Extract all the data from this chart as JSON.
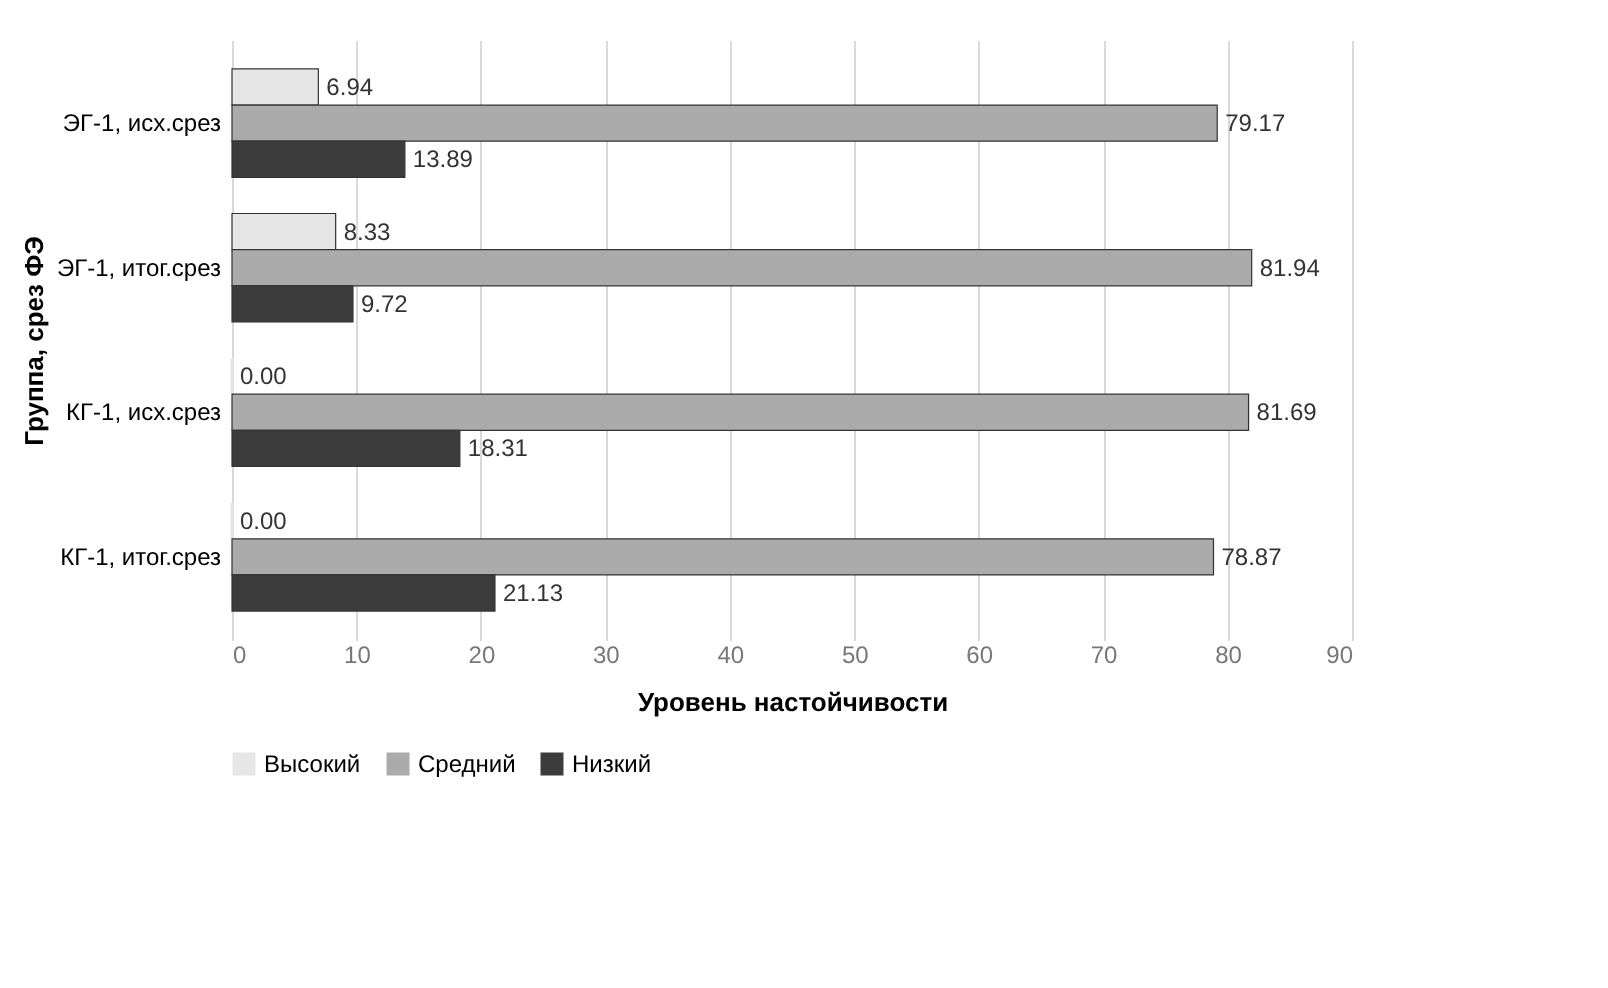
{
  "chart_data": {
    "type": "bar",
    "orientation": "horizontal",
    "xlabel": "Уровень настойчивости",
    "ylabel": "Группа, срез ФЭ",
    "categories": [
      "ЭГ-1, исх.срез",
      "ЭГ-1, итог.срез",
      "КГ-1, исх.срез",
      "КГ-1, итог.срез"
    ],
    "series": [
      {
        "name": "Высокий",
        "color": "#e6e6e6",
        "values": [
          6.94,
          8.33,
          0.0,
          0.0
        ],
        "value_labels": [
          "6.94",
          "8.33",
          "0.00",
          "0.00"
        ]
      },
      {
        "name": "Средний",
        "color": "#ababab",
        "values": [
          79.17,
          81.94,
          81.69,
          78.87
        ],
        "value_labels": [
          "79.17",
          "81.94",
          "81.69",
          "78.87"
        ]
      },
      {
        "name": "Низкий",
        "color": "#3c3c3c",
        "values": [
          13.89,
          9.72,
          18.31,
          21.13
        ],
        "value_labels": [
          "13.89",
          "9.72",
          "18.31",
          "21.13"
        ]
      }
    ],
    "xlim": [
      0,
      90
    ],
    "xticks": [
      0,
      10,
      20,
      30,
      40,
      50,
      60,
      70,
      80,
      90
    ],
    "grid": "x",
    "legend": "bottom"
  }
}
